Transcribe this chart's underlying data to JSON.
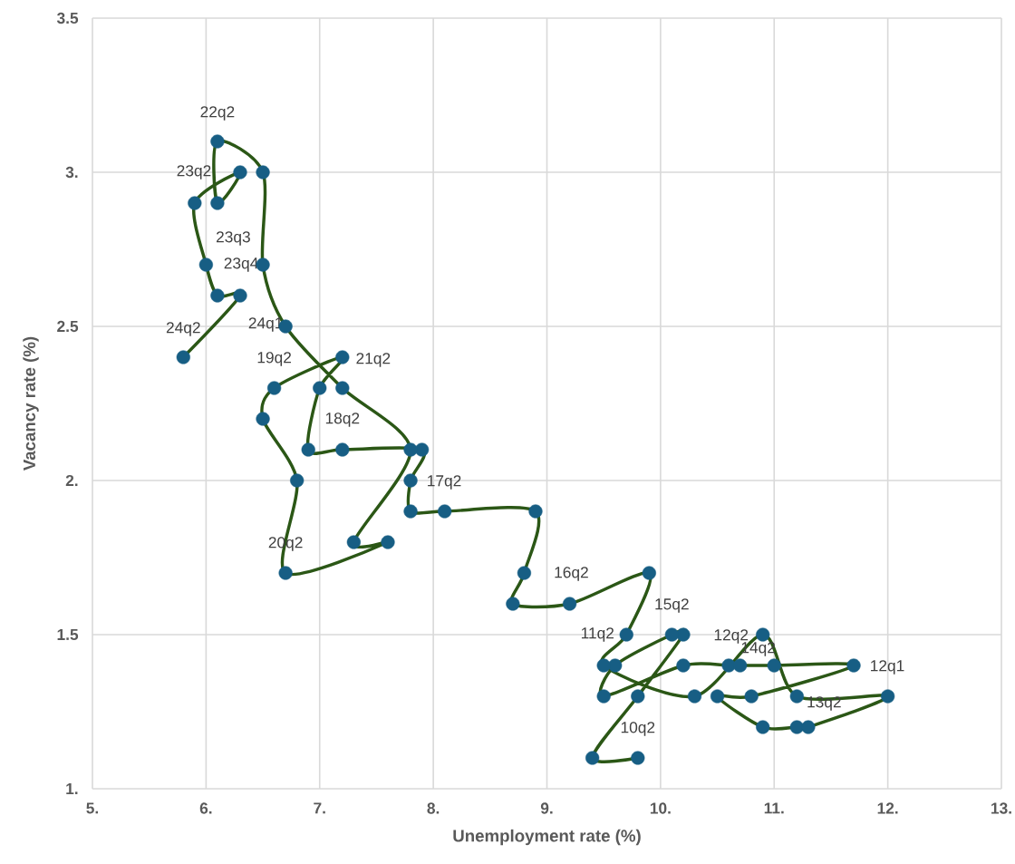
{
  "chart_data": {
    "type": "line",
    "xlabel": "Unemployment rate (%)",
    "ylabel": "Vacancy rate (%)",
    "x": [
      9.8,
      9.4,
      9.8,
      10.2,
      10.1,
      9.6,
      9.5,
      10.2,
      10.6,
      10.7,
      11.0,
      11.7,
      10.8,
      10.5,
      10.9,
      11.2,
      11.3,
      12.0,
      11.2,
      10.9,
      10.3,
      9.5,
      9.7,
      9.9,
      9.2,
      8.7,
      8.8,
      8.9,
      8.1,
      7.8,
      7.8,
      7.9,
      7.2,
      6.9,
      7.0,
      7.2,
      6.6,
      6.5,
      6.8,
      6.7,
      7.6,
      7.3,
      7.8,
      7.2,
      6.7,
      6.5,
      6.5,
      6.1,
      6.1,
      6.3,
      5.9,
      6.0,
      6.1,
      6.3,
      5.8
    ],
    "series": [
      {
        "color": "#2b5716",
        "marker": "none",
        "values": [
          1.1,
          1.1,
          1.3,
          1.5,
          1.5,
          1.4,
          1.3,
          1.4,
          1.4,
          1.4,
          1.4,
          1.4,
          1.3,
          1.3,
          1.2,
          1.2,
          1.2,
          1.3,
          1.3,
          1.5,
          1.3,
          1.4,
          1.5,
          1.7,
          1.6,
          1.6,
          1.7,
          1.9,
          1.9,
          1.9,
          2.0,
          2.1,
          2.1,
          2.1,
          2.3,
          2.4,
          2.3,
          2.2,
          2.0,
          1.7,
          1.8,
          1.8,
          2.1,
          2.3,
          2.5,
          2.7,
          3.0,
          3.1,
          2.9,
          3.0,
          2.9,
          2.7,
          2.6,
          2.6,
          2.4
        ]
      },
      {
        "type": "scatter",
        "color": "#175e84",
        "marker": "circle",
        "values": [
          1.1,
          1.1,
          1.3,
          1.5,
          1.5,
          1.4,
          1.3,
          1.4,
          1.4,
          1.4,
          1.4,
          1.4,
          1.3,
          1.3,
          1.2,
          1.2,
          1.2,
          1.3,
          1.3,
          1.5,
          1.3,
          1.4,
          1.5,
          1.7,
          1.6,
          1.6,
          1.7,
          1.9,
          1.9,
          1.9,
          2.0,
          2.1,
          2.1,
          2.1,
          2.3,
          2.4,
          2.3,
          2.2,
          2.0,
          1.7,
          1.8,
          1.8,
          2.1,
          2.3,
          2.5,
          2.7,
          3.0,
          3.1,
          2.9,
          3.0,
          2.9,
          2.7,
          2.6,
          2.6,
          2.4
        ]
      }
    ],
    "xlim": [
      5,
      13
    ],
    "ylim": [
      1,
      3.5
    ],
    "xticks": [
      {
        "value": 5,
        "label": "5."
      },
      {
        "value": 6,
        "label": "6."
      },
      {
        "value": 7,
        "label": "7."
      },
      {
        "value": 8,
        "label": "8."
      },
      {
        "value": 9,
        "label": "9."
      },
      {
        "value": 10,
        "label": "10."
      },
      {
        "value": 11,
        "label": "11."
      },
      {
        "value": 12,
        "label": "12."
      },
      {
        "value": 13,
        "label": "13."
      }
    ],
    "yticks": [
      {
        "value": 1,
        "label": "1."
      },
      1.5,
      {
        "value": 2,
        "label": "2."
      },
      2.5,
      {
        "value": 3,
        "label": "3."
      },
      3.5
    ],
    "grid": true,
    "annotations": [
      {
        "text": "22q2",
        "x": 6.1,
        "y": 3.1
      },
      {
        "text": "23q2",
        "x": 6.3,
        "y": 3.0
      },
      {
        "text": "23q3",
        "x": 6.0,
        "y": 2.7
      },
      {
        "text": "23q4",
        "x": 6.5,
        "y": 2.7
      },
      {
        "text": "24q1",
        "x": 6.7,
        "y": 2.5
      },
      {
        "text": "24q2",
        "x": 5.8,
        "y": 2.4
      },
      {
        "text": "19q2",
        "x": 6.6,
        "y": 2.3
      },
      {
        "text": "21q2",
        "x": 7.2,
        "y": 2.4
      },
      {
        "text": "18q2",
        "x": 7.2,
        "y": 2.3
      },
      {
        "text": "17q2",
        "x": 7.8,
        "y": 2.0
      },
      {
        "text": "20q2",
        "x": 6.7,
        "y": 1.7
      },
      {
        "text": "16q2",
        "x": 8.8,
        "y": 1.7
      },
      {
        "text": "15q2",
        "x": 9.9,
        "y": 1.7
      },
      {
        "text": "11q2",
        "x": 9.7,
        "y": 1.5
      },
      {
        "text": "12q2",
        "x": 10.9,
        "y": 1.5
      },
      {
        "text": "14q2",
        "x": 10.7,
        "y": 1.4
      },
      {
        "text": "13q2",
        "x": 11.2,
        "y": 1.3
      },
      {
        "text": "12q1",
        "x": 11.7,
        "y": 1.4
      },
      {
        "text": "10q2",
        "x": 9.8,
        "y": 1.3
      }
    ]
  }
}
